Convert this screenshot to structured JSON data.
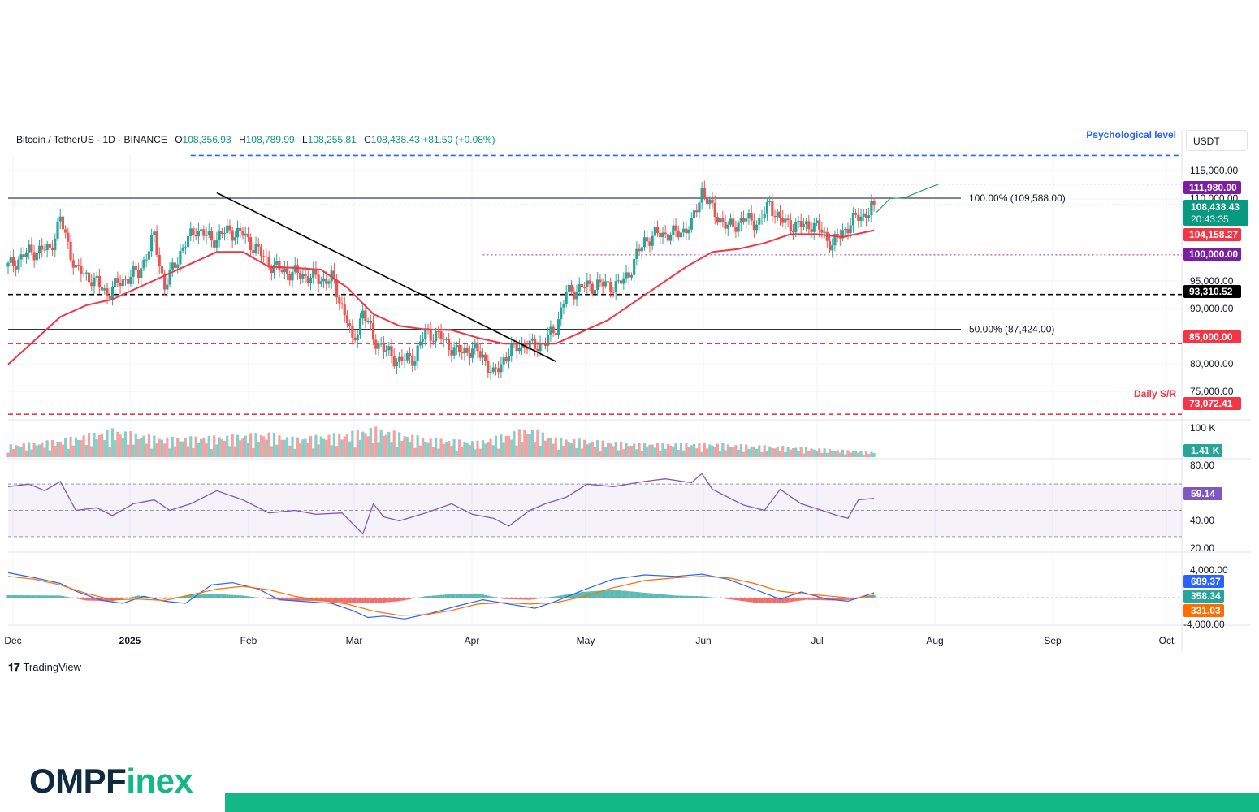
{
  "header": {
    "symbol": "Bitcoin / TetherUS · 1D · BINANCE",
    "open_label": "O",
    "open": "108,356.93",
    "high_label": "H",
    "high": "108,789.99",
    "low_label": "L",
    "low": "108,255.81",
    "close_label": "C",
    "close": "108,438.43",
    "change": "+81.50 (+0.08%)",
    "unit": "USDT"
  },
  "brand": {
    "left": "OMPF",
    "right": "inex"
  },
  "tradingview": {
    "logo": "𝟏𝟕",
    "label": "TradingView"
  },
  "colors": {
    "up": "#26a69a",
    "down": "#ef5350",
    "ma": "#f23645",
    "rsi": "#7e57c2",
    "macd": "#2962ff",
    "signal": "#ff6d00",
    "brand_green": "#12b886"
  },
  "chart_data": [
    {
      "type": "candlestick",
      "title": "Bitcoin / TetherUS · 1D · BINANCE",
      "x_ticks": [
        "Dec",
        "2025",
        "Feb",
        "Mar",
        "Apr",
        "May",
        "Jun",
        "Jul",
        "Aug",
        "Sep",
        "Oct"
      ],
      "y_ticks": [
        "115,000.00",
        "110,000.00",
        "95,000.00",
        "90,000.00",
        "80,000.00",
        "75,000.00"
      ],
      "ylim": [
        72000,
        117000
      ],
      "price_close_path": [
        [
          0,
          98000
        ],
        [
          8,
          100500
        ],
        [
          16,
          101000
        ],
        [
          20,
          106000
        ],
        [
          26,
          97500
        ],
        [
          32,
          96000
        ],
        [
          38,
          93500
        ],
        [
          44,
          95800
        ],
        [
          50,
          97000
        ],
        [
          56,
          103000
        ],
        [
          60,
          94500
        ],
        [
          66,
          100500
        ],
        [
          72,
          104500
        ],
        [
          78,
          102500
        ],
        [
          84,
          104000
        ],
        [
          90,
          103500
        ],
        [
          96,
          100500
        ],
        [
          102,
          97800
        ],
        [
          108,
          97000
        ],
        [
          114,
          96500
        ],
        [
          120,
          95800
        ],
        [
          124,
          96000
        ],
        [
          130,
          89000
        ],
        [
          132,
          84800
        ],
        [
          136,
          90500
        ],
        [
          140,
          86000
        ],
        [
          144,
          84000
        ],
        [
          150,
          82000
        ],
        [
          156,
          82800
        ],
        [
          160,
          87000
        ],
        [
          166,
          86000
        ],
        [
          172,
          83500
        ],
        [
          178,
          84000
        ],
        [
          182,
          83000
        ],
        [
          186,
          79500
        ],
        [
          190,
          82500
        ],
        [
          196,
          85000
        ],
        [
          200,
          84500
        ],
        [
          206,
          85200
        ],
        [
          210,
          87800
        ],
        [
          214,
          93500
        ],
        [
          220,
          94500
        ],
        [
          226,
          95000
        ],
        [
          234,
          94800
        ],
        [
          238,
          97000
        ],
        [
          244,
          102500
        ],
        [
          250,
          103600
        ],
        [
          256,
          103500
        ],
        [
          262,
          105000
        ],
        [
          266,
          111000
        ],
        [
          270,
          107500
        ],
        [
          276,
          104500
        ],
        [
          282,
          106000
        ],
        [
          288,
          105500
        ],
        [
          292,
          108700
        ],
        [
          296,
          105800
        ],
        [
          302,
          104800
        ],
        [
          308,
          105200
        ],
        [
          312,
          104000
        ],
        [
          316,
          101500
        ],
        [
          320,
          104000
        ],
        [
          326,
          106500
        ],
        [
          330,
          107200
        ],
        [
          332,
          108438
        ]
      ],
      "ma_path": [
        [
          0,
          81500
        ],
        [
          10,
          85500
        ],
        [
          20,
          89500
        ],
        [
          30,
          91500
        ],
        [
          40,
          92500
        ],
        [
          50,
          94500
        ],
        [
          60,
          96500
        ],
        [
          70,
          98500
        ],
        [
          80,
          100500
        ],
        [
          90,
          100500
        ],
        [
          100,
          98000
        ],
        [
          110,
          97800
        ],
        [
          120,
          97500
        ],
        [
          130,
          94500
        ],
        [
          140,
          90000
        ],
        [
          150,
          88000
        ],
        [
          160,
          87400
        ],
        [
          170,
          87300
        ],
        [
          180,
          86000
        ],
        [
          190,
          85000
        ],
        [
          200,
          85000
        ],
        [
          210,
          85000
        ],
        [
          220,
          87000
        ],
        [
          230,
          89000
        ],
        [
          240,
          92000
        ],
        [
          250,
          95000
        ],
        [
          260,
          98000
        ],
        [
          270,
          100500
        ],
        [
          280,
          101000
        ],
        [
          290,
          102000
        ],
        [
          300,
          103500
        ],
        [
          310,
          103500
        ],
        [
          320,
          103000
        ],
        [
          332,
          104158
        ]
      ],
      "ma_value": "104,158.27",
      "trendline": [
        [
          80,
          110500
        ],
        [
          210,
          82000
        ]
      ],
      "projection_path": [
        [
          333,
          107200
        ],
        [
          338,
          109500
        ],
        [
          344,
          109700
        ],
        [
          350,
          110800
        ],
        [
          357,
          112000
        ]
      ],
      "horizontal_levels": [
        {
          "price": 116800,
          "label": "Psychological level",
          "style": "dashed",
          "color": "#2962ff",
          "x_from": 70
        },
        {
          "price": 111980,
          "label": "111,980.00",
          "style": "dotted",
          "color": "#9c27b0",
          "x_from": 270
        },
        {
          "price": 109588,
          "label": "100.00% (109,588.00)",
          "style": "solid",
          "color": "#131722",
          "x_from": 0
        },
        {
          "price": 100000,
          "label": "100,000.00",
          "style": "dotted",
          "color": "#9c27b0",
          "x_from": 182
        },
        {
          "price": 93310.52,
          "label": "93,310.52",
          "style": "dashed",
          "color": "#000000",
          "x_from": 0
        },
        {
          "price": 87424,
          "label": "50.00% (87,424.00)",
          "style": "solid",
          "color": "#131722",
          "x_from": 0
        },
        {
          "price": 85000,
          "label": "85,000.00",
          "style": "dashed",
          "color": "#f23645",
          "x_from": 0
        },
        {
          "price": 73072.41,
          "label": "73,072.41",
          "style": "dashed",
          "color": "#f23645",
          "x_from": 0
        }
      ],
      "current_price": {
        "value": "108,438.43",
        "countdown": "20:43:35"
      },
      "annotations": [
        "Psychological level",
        "Daily S/R"
      ],
      "price_tags": [
        {
          "text": "111,980.00",
          "color": "#7b1fa2"
        },
        {
          "text": "108,438.43",
          "color": "#089981"
        },
        {
          "text": "104,158.27",
          "color": "#f23645"
        },
        {
          "text": "100,000.00",
          "color": "#7b1fa2"
        },
        {
          "text": "93,310.52",
          "color": "#000000"
        },
        {
          "text": "85,000.00",
          "color": "#f23645"
        },
        {
          "text": "73,072.41",
          "color": "#f23645"
        }
      ]
    },
    {
      "type": "bar",
      "title": "Volume",
      "y_ticks": [
        "100 K"
      ],
      "last_value": "1.41 K",
      "envelope": [
        [
          0,
          0.35
        ],
        [
          20,
          0.5
        ],
        [
          40,
          0.8
        ],
        [
          60,
          0.55
        ],
        [
          80,
          0.6
        ],
        [
          100,
          0.7
        ],
        [
          110,
          0.55
        ],
        [
          130,
          0.7
        ],
        [
          140,
          0.85
        ],
        [
          160,
          0.55
        ],
        [
          180,
          0.45
        ],
        [
          200,
          0.85
        ],
        [
          210,
          0.55
        ],
        [
          240,
          0.4
        ],
        [
          266,
          0.4
        ],
        [
          300,
          0.3
        ],
        [
          332,
          0.15
        ]
      ]
    },
    {
      "type": "line",
      "title": "RSI",
      "y_ticks": [
        "80.00",
        "40.00",
        "20.00"
      ],
      "ylim": [
        20,
        80
      ],
      "bands": [
        30,
        50,
        70
      ],
      "last_value": "59.14",
      "values_path": [
        [
          0,
          68
        ],
        [
          8,
          70
        ],
        [
          14,
          65
        ],
        [
          20,
          72
        ],
        [
          26,
          50
        ],
        [
          34,
          52
        ],
        [
          40,
          46
        ],
        [
          48,
          55
        ],
        [
          56,
          58
        ],
        [
          62,
          50
        ],
        [
          70,
          55
        ],
        [
          80,
          65
        ],
        [
          90,
          58
        ],
        [
          100,
          48
        ],
        [
          110,
          50
        ],
        [
          118,
          47
        ],
        [
          128,
          48
        ],
        [
          132,
          40
        ],
        [
          136,
          32
        ],
        [
          140,
          55
        ],
        [
          144,
          45
        ],
        [
          150,
          42
        ],
        [
          160,
          48
        ],
        [
          170,
          55
        ],
        [
          178,
          47
        ],
        [
          186,
          44
        ],
        [
          192,
          38
        ],
        [
          200,
          50
        ],
        [
          206,
          55
        ],
        [
          214,
          60
        ],
        [
          222,
          70
        ],
        [
          232,
          68
        ],
        [
          244,
          72
        ],
        [
          252,
          74
        ],
        [
          262,
          71
        ],
        [
          266,
          78
        ],
        [
          270,
          66
        ],
        [
          282,
          54
        ],
        [
          290,
          50
        ],
        [
          296,
          66
        ],
        [
          304,
          55
        ],
        [
          312,
          50
        ],
        [
          318,
          46
        ],
        [
          322,
          44
        ],
        [
          326,
          58
        ],
        [
          332,
          59.14
        ]
      ]
    },
    {
      "type": "line",
      "title": "MACD",
      "y_ticks": [
        "4,000.00",
        "-4,000.00"
      ],
      "ylim": [
        -4500,
        4500
      ],
      "values": {
        "macd": "689.37",
        "histogram": "358.34",
        "signal": "331.03"
      },
      "macd_path": [
        [
          0,
          3500
        ],
        [
          10,
          2800
        ],
        [
          20,
          2000
        ],
        [
          26,
          900
        ],
        [
          36,
          -400
        ],
        [
          44,
          -800
        ],
        [
          52,
          200
        ],
        [
          60,
          -500
        ],
        [
          68,
          -800
        ],
        [
          78,
          1800
        ],
        [
          86,
          2100
        ],
        [
          96,
          1200
        ],
        [
          104,
          -300
        ],
        [
          112,
          -500
        ],
        [
          124,
          -800
        ],
        [
          132,
          -1800
        ],
        [
          138,
          -2800
        ],
        [
          144,
          -2600
        ],
        [
          152,
          -3000
        ],
        [
          162,
          -2200
        ],
        [
          172,
          -1200
        ],
        [
          182,
          -300
        ],
        [
          192,
          -900
        ],
        [
          202,
          -1500
        ],
        [
          210,
          -500
        ],
        [
          220,
          1000
        ],
        [
          232,
          2600
        ],
        [
          244,
          3200
        ],
        [
          256,
          3000
        ],
        [
          266,
          3300
        ],
        [
          276,
          2600
        ],
        [
          286,
          1200
        ],
        [
          296,
          -200
        ],
        [
          304,
          800
        ],
        [
          314,
          -200
        ],
        [
          322,
          -500
        ],
        [
          332,
          689
        ]
      ],
      "signal_path": [
        [
          0,
          3000
        ],
        [
          10,
          2600
        ],
        [
          20,
          1800
        ],
        [
          30,
          600
        ],
        [
          40,
          -300
        ],
        [
          50,
          -200
        ],
        [
          60,
          -400
        ],
        [
          70,
          400
        ],
        [
          80,
          1200
        ],
        [
          90,
          1600
        ],
        [
          100,
          1100
        ],
        [
          110,
          200
        ],
        [
          120,
          -400
        ],
        [
          130,
          -900
        ],
        [
          140,
          -1900
        ],
        [
          150,
          -2500
        ],
        [
          160,
          -2400
        ],
        [
          170,
          -1800
        ],
        [
          180,
          -900
        ],
        [
          190,
          -700
        ],
        [
          200,
          -900
        ],
        [
          210,
          -700
        ],
        [
          220,
          100
        ],
        [
          232,
          1400
        ],
        [
          244,
          2400
        ],
        [
          256,
          2800
        ],
        [
          266,
          3000
        ],
        [
          276,
          2800
        ],
        [
          286,
          2000
        ],
        [
          296,
          900
        ],
        [
          306,
          500
        ],
        [
          316,
          200
        ],
        [
          324,
          -100
        ],
        [
          332,
          331
        ]
      ],
      "hist_envelope": [
        [
          0,
          350
        ],
        [
          20,
          300
        ],
        [
          30,
          -400
        ],
        [
          40,
          -500
        ],
        [
          50,
          300
        ],
        [
          60,
          -200
        ],
        [
          70,
          400
        ],
        [
          80,
          500
        ],
        [
          90,
          300
        ],
        [
          100,
          -200
        ],
        [
          110,
          -400
        ],
        [
          120,
          -500
        ],
        [
          130,
          -700
        ],
        [
          140,
          -800
        ],
        [
          150,
          -500
        ],
        [
          160,
          200
        ],
        [
          170,
          500
        ],
        [
          180,
          600
        ],
        [
          190,
          -200
        ],
        [
          200,
          -300
        ],
        [
          210,
          200
        ],
        [
          220,
          800
        ],
        [
          232,
          1100
        ],
        [
          244,
          700
        ],
        [
          256,
          300
        ],
        [
          266,
          200
        ],
        [
          276,
          -200
        ],
        [
          286,
          -700
        ],
        [
          296,
          -800
        ],
        [
          306,
          -300
        ],
        [
          316,
          -400
        ],
        [
          324,
          -300
        ],
        [
          332,
          358
        ]
      ]
    }
  ]
}
